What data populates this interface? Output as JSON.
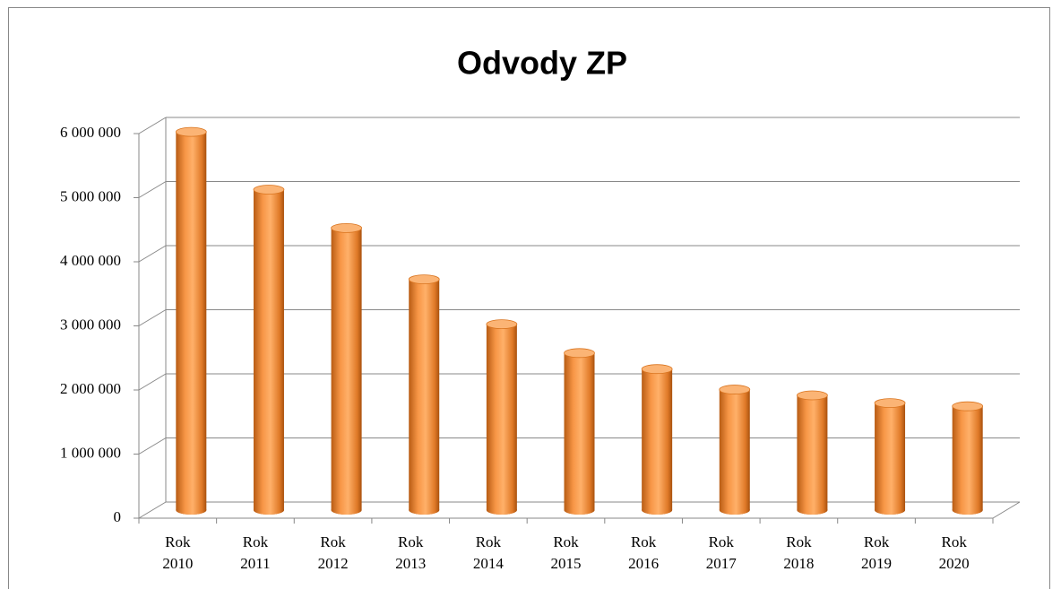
{
  "chart_data": {
    "type": "bar3d",
    "title": "Odvody ZP",
    "categories": [
      "Rok 2010",
      "Rok 2011",
      "Rok 2012",
      "Rok 2013",
      "Rok 2014",
      "Rok 2015",
      "Rok 2016",
      "Rok 2017",
      "Rok 2018",
      "Rok 2019",
      "Rok 2020"
    ],
    "values": [
      5900000,
      5000000,
      4400000,
      3600000,
      2900000,
      2450000,
      2200000,
      1880000,
      1790000,
      1670000,
      1620000
    ],
    "color": "#f79646",
    "ylim": [
      0,
      6000000
    ],
    "yticks": [
      0,
      {
        "value": 1000000,
        "label": "1 000 000"
      },
      {
        "value": 2000000,
        "label": "2 000 000"
      },
      {
        "value": 3000000,
        "label": "3 000 000"
      },
      {
        "value": 4000000,
        "label": "4 000 000"
      },
      {
        "value": 5000000,
        "label": "5 000 000"
      },
      {
        "value": 6000000,
        "label": "6 000 000"
      }
    ],
    "grid": true
  }
}
